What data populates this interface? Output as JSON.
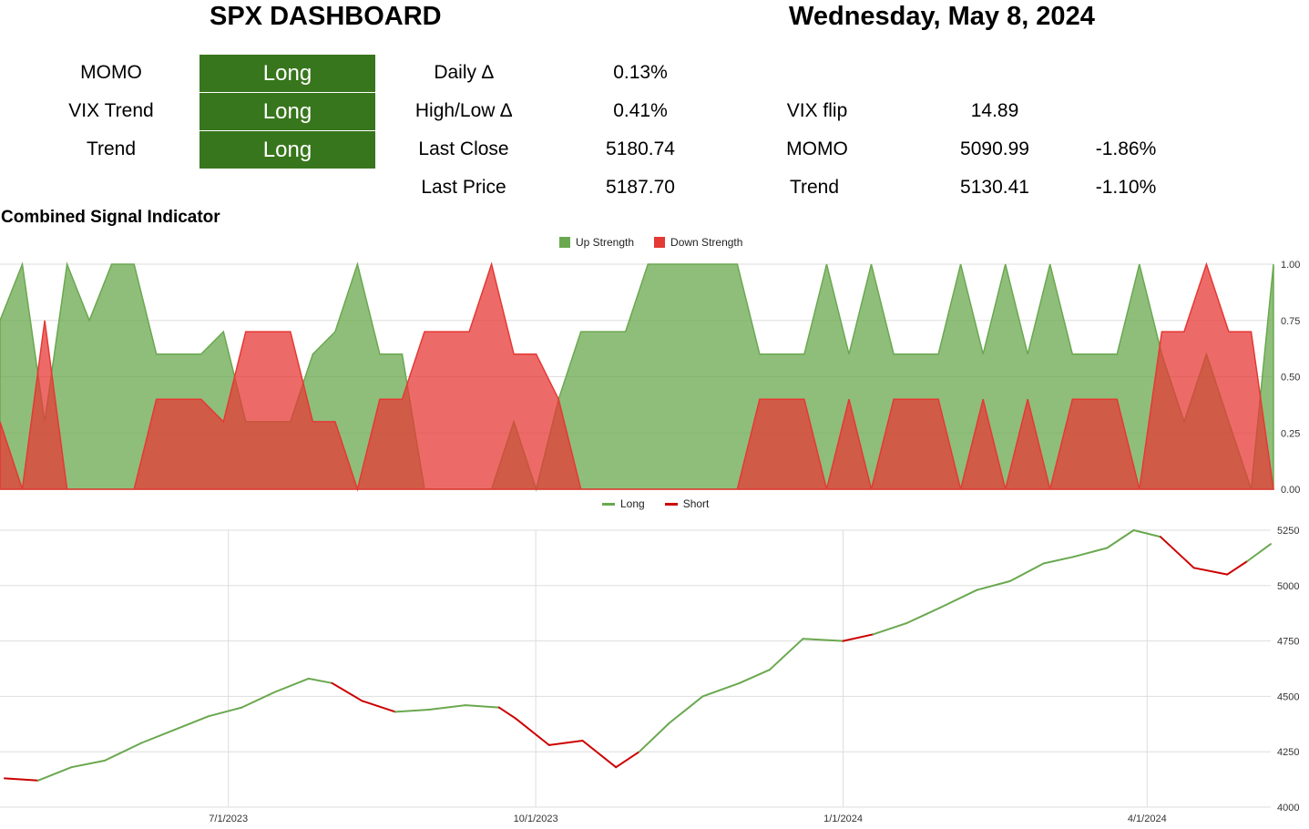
{
  "header": {
    "title": "SPX DASHBOARD",
    "date": "Wednesday, May 8, 2024"
  },
  "signals": [
    {
      "label": "MOMO",
      "value": "Long"
    },
    {
      "label": "VIX Trend",
      "value": "Long"
    },
    {
      "label": "Trend",
      "value": "Long"
    }
  ],
  "stats": {
    "daily_label": "Daily ∆",
    "daily_value": "0.13%",
    "hl_label": "High/Low ∆",
    "hl_value": "0.41%",
    "close_label": "Last Close",
    "close_value": "5180.74",
    "price_label": "Last Price",
    "price_value": "5187.70",
    "vix_label": "VIX flip",
    "vix_value": "14.89",
    "momo_label": "MOMO",
    "momo_value": "5090.99",
    "momo_pct": "-1.86%",
    "trend_label": "Trend",
    "trend_value": "5130.41",
    "trend_pct": "-1.10%"
  },
  "section_title": "Combined Signal Indicator",
  "colors": {
    "up": "#6aa84f",
    "down": "#e53935",
    "long_line": "#6aa84f",
    "short_line": "#cc0000",
    "signal_bg": "#38761d"
  },
  "chart_data": [
    {
      "type": "area",
      "series": [
        {
          "name": "Up Strength",
          "values": [
            0.75,
            1,
            0.3,
            1,
            0.75,
            1,
            1,
            0.6,
            0.6,
            0.6,
            0.7,
            0.3,
            0.3,
            0.3,
            0.6,
            0.7,
            1,
            0.6,
            0.6,
            0,
            0,
            0,
            0,
            0.3,
            0,
            0.4,
            0.7,
            0.7,
            0.7,
            1,
            1,
            1,
            1,
            1,
            0.6,
            0.6,
            0.6,
            1,
            0.6,
            1,
            0.6,
            0.6,
            0.6,
            1,
            0.6,
            1,
            0.6,
            1,
            0.6,
            0.6,
            0.6,
            1,
            0.6,
            0.3,
            0.6,
            0.3,
            0,
            1
          ]
        },
        {
          "name": "Down Strength",
          "values": [
            0.3,
            0,
            0.75,
            0,
            0,
            0,
            0,
            0.4,
            0.4,
            0.4,
            0.3,
            0.7,
            0.7,
            0.7,
            0.3,
            0.3,
            0,
            0.4,
            0.4,
            0.7,
            0.7,
            0.7,
            1,
            0.6,
            0.6,
            0.4,
            0,
            0,
            0,
            0,
            0,
            0,
            0,
            0,
            0.4,
            0.4,
            0.4,
            0,
            0.4,
            0,
            0.4,
            0.4,
            0.4,
            0,
            0.4,
            0,
            0.4,
            0,
            0.4,
            0.4,
            0.4,
            0,
            0.7,
            0.7,
            1,
            0.7,
            0.7,
            0
          ]
        }
      ],
      "ylim": [
        0,
        1
      ],
      "yticks": [
        "0.00",
        "0.25",
        "0.50",
        "0.75",
        "1.00"
      ]
    },
    {
      "type": "line",
      "series": [
        {
          "name": "Long"
        },
        {
          "name": "Short"
        }
      ],
      "x": [
        "4/25/2023",
        "5/5/2023",
        "5/15/2023",
        "5/25/2023",
        "6/5/2023",
        "6/15/2023",
        "6/25/2023",
        "7/5/2023",
        "7/15/2023",
        "7/25/2023",
        "8/1/2023",
        "8/10/2023",
        "8/20/2023",
        "8/30/2023",
        "9/10/2023",
        "9/20/2023",
        "9/25/2023",
        "10/5/2023",
        "10/15/2023",
        "10/25/2023",
        "11/1/2023",
        "11/10/2023",
        "11/20/2023",
        "12/1/2023",
        "12/10/2023",
        "12/20/2023",
        "1/1/2024",
        "1/10/2024",
        "1/20/2024",
        "1/30/2024",
        "2/10/2024",
        "2/20/2024",
        "3/1/2024",
        "3/10/2024",
        "3/20/2024",
        "3/28/2024",
        "4/5/2024",
        "4/15/2024",
        "4/25/2024",
        "5/1/2024",
        "5/8/2024"
      ],
      "close": [
        4130,
        4120,
        4180,
        4210,
        4290,
        4350,
        4410,
        4450,
        4520,
        4580,
        4560,
        4480,
        4430,
        4440,
        4460,
        4450,
        4400,
        4280,
        4300,
        4180,
        4250,
        4380,
        4500,
        4560,
        4620,
        4760,
        4750,
        4780,
        4830,
        4900,
        4980,
        5020,
        5100,
        5130,
        5170,
        5250,
        5220,
        5080,
        5050,
        5110,
        5187.7
      ],
      "regime": [
        "long",
        "short",
        "long",
        "long",
        "long",
        "long",
        "long",
        "long",
        "long",
        "long",
        "long",
        "short",
        "short",
        "long",
        "long",
        "long",
        "short",
        "short",
        "short",
        "short",
        "short",
        "long",
        "long",
        "long",
        "long",
        "long",
        "long",
        "short",
        "long",
        "long",
        "long",
        "long",
        "long",
        "long",
        "long",
        "long",
        "long",
        "short",
        "short",
        "short",
        "long"
      ],
      "xtick_labels": [
        "7/1/2023",
        "10/1/2023",
        "1/1/2024",
        "4/1/2024"
      ],
      "yticks": [
        "4000",
        "4250",
        "4500",
        "4750",
        "5000",
        "5250"
      ],
      "ylim": [
        4000,
        5250
      ]
    }
  ]
}
